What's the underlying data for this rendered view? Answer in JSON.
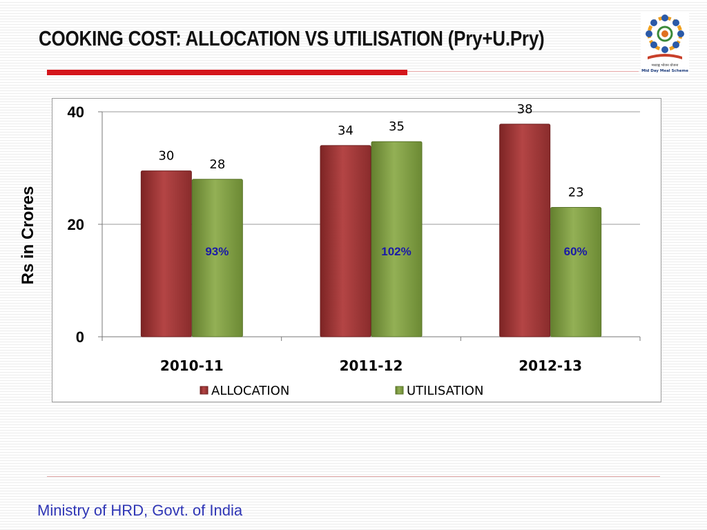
{
  "slide": {
    "title": "COOKING COST: ALLOCATION VS UTILISATION (Pry+U.Pry)",
    "footer": "Ministry of HRD, Govt. of India",
    "logo_text": [
      "मध्याह्न भोजन योजना",
      "Mid Day Meal Scheme"
    ]
  },
  "colors": {
    "allocation": "#a33a3a",
    "utilisation": "#86a34a",
    "title_rule": "#d4161c",
    "percent_label": "#1a1aa6",
    "footer_text": "#2e35b5"
  },
  "chart_data": {
    "type": "bar",
    "categories": [
      "2010-11",
      "2011-12",
      "2012-13"
    ],
    "series": [
      {
        "name": "ALLOCATION",
        "values": [
          29.5,
          34,
          37.8
        ],
        "labels": [
          "30",
          "34",
          "38"
        ]
      },
      {
        "name": "UTILISATION",
        "values": [
          28,
          34.7,
          23
        ],
        "labels": [
          "28",
          "35",
          "23"
        ]
      }
    ],
    "utilisation_percent_labels": [
      "93%",
      "102%",
      "60%"
    ],
    "title": "",
    "xlabel": "",
    "ylabel": "Rs in Crores",
    "ylim": [
      0,
      40
    ],
    "yticks": [
      0,
      20,
      40
    ],
    "grid": true,
    "legend_position": "bottom"
  }
}
